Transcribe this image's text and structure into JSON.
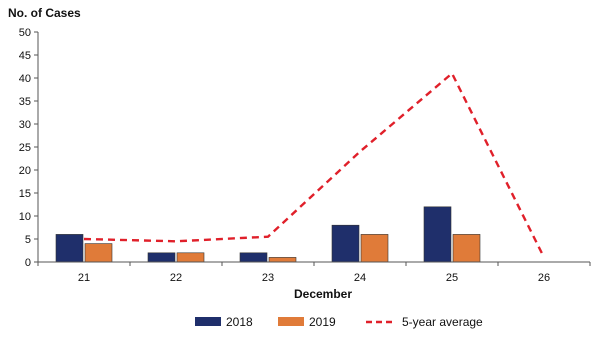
{
  "chart_data": {
    "type": "bar",
    "ylabel": "No. of Cases",
    "xlabel": "December",
    "categories": [
      "21",
      "22",
      "23",
      "24",
      "25",
      "26"
    ],
    "ylim": [
      0,
      50
    ],
    "yticks": [
      0,
      5,
      10,
      15,
      20,
      25,
      30,
      35,
      40,
      45,
      50
    ],
    "grid": false,
    "legend_position": "bottom",
    "series": [
      {
        "name": "2018",
        "kind": "bar",
        "color": "#1f2f6b",
        "values": [
          6,
          2,
          2,
          8,
          12,
          0
        ]
      },
      {
        "name": "2019",
        "kind": "bar",
        "color": "#e07b39",
        "values": [
          4,
          2,
          1,
          6,
          6,
          0
        ]
      },
      {
        "name": "5-year average",
        "kind": "line",
        "style": "dashed",
        "color": "#e0202a",
        "values": [
          5,
          4.5,
          5.5,
          24,
          41,
          1
        ]
      }
    ]
  }
}
